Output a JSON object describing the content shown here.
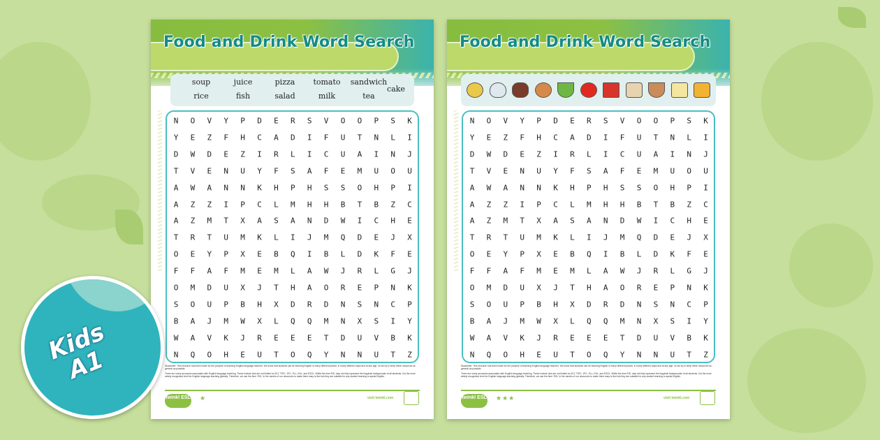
{
  "title": "Food and Drink Word Search",
  "words": [
    "soup",
    "juice",
    "pizza",
    "tomato",
    "sandwich",
    "rice",
    "fish",
    "salad",
    "milk",
    "tea",
    "cake"
  ],
  "picture_icons": [
    "noodle-soup-icon",
    "rice-bowl-icon",
    "fish-icon",
    "pizza-icon",
    "salad-icon",
    "tomato-icon",
    "milk-carton-icon",
    "sandwich-bread-icon",
    "tea-cup-icon",
    "cake-icon",
    "juice-cans-icon"
  ],
  "grid": [
    "NOVYPDERSVOOPSK",
    "YEZFHCADIFUTNLI",
    "DWDEZIRLICUAINJ",
    "TVENUYFSAFEMUOU",
    "AWANNKHPHSSOHPI",
    "AZZIPCLMHHBTBZC",
    "AZMTXASANDWICHE",
    "TRTUMKLIJMQDEJX",
    "OEYPXEBQIBLDKFE",
    "FFAFMEMLAWJRLGJ",
    "OMDUXJTHAOREPNK",
    "SOUPBHXDRDNSNCP",
    "BAJMWXLQQMNXSIY",
    "WAVKJREEETDUVBK",
    "NQOHEUTOQYNNUTZ"
  ],
  "disclaimer": [
    "Disclaimer: This resource has been made for the purpose of teaching English language learners. We know that students can be learning English in many different places, in many different ways and at any age, so we try to keep these resources as general as possible.",
    "There are many acronyms associated with English language teaching. These include (but are not limited to) ELT, TEFL, EFL, ELL, EAL, and ESOL. While the term ESL may not fully represent the linguistic backgrounds of all students, it is the most widely recognised term for English language teaching globally. Therefore, we use the term 'ESL' in the names of our resources to make them easy to find but they are suitable for any student learning to speak English."
  ],
  "footer": {
    "logo": "twinkl ESL",
    "visit": "visit twinkl.com",
    "left_stars": "★",
    "right_stars": "★★★"
  },
  "badge": {
    "line1": "Kids",
    "line2": "A1"
  },
  "colors": {
    "background": "#c6df9c",
    "accent_green": "#8cc043",
    "teal": "#2fb4bd",
    "title": "#138c83"
  }
}
